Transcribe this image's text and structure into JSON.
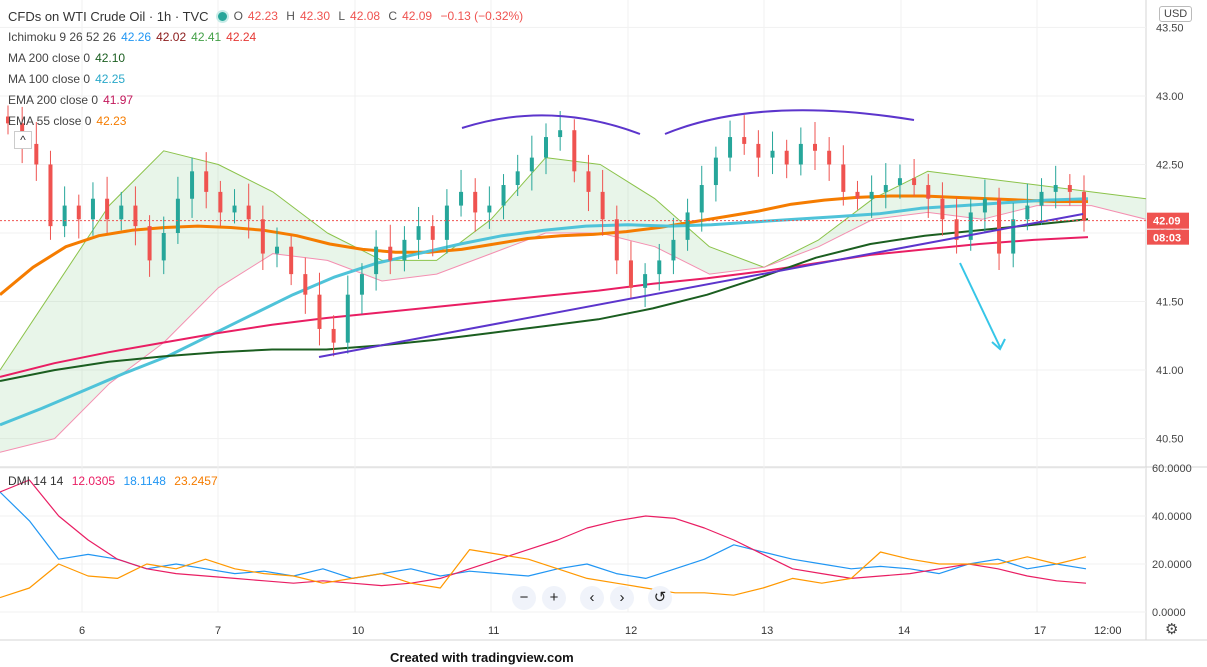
{
  "header": {
    "title": "CFDs on WTI Crude Oil · 1h · TVC",
    "ohlc": {
      "o_label": "O",
      "o": "42.23",
      "h_label": "H",
      "h": "42.30",
      "l_label": "L",
      "l": "42.08",
      "c_label": "C",
      "c": "42.09",
      "change": "−0.13 (−0.32%)"
    },
    "collapse_icon": "^"
  },
  "indicators": {
    "ichimoku": {
      "label": "Ichimoku 9 26 52 26",
      "v1": "42.26",
      "v2": "42.02",
      "v3": "42.41",
      "v4": "42.24"
    },
    "ma200": {
      "label": "MA 200 close 0",
      "value": "42.10"
    },
    "ma100": {
      "label": "MA 100 close 0",
      "value": "42.25"
    },
    "ema200": {
      "label": "EMA 200 close 0",
      "value": "41.97"
    },
    "ema55": {
      "label": "EMA 55 close 0",
      "value": "42.23"
    }
  },
  "dmi": {
    "label": "DMI 14 14",
    "v1": "12.0305",
    "v2": "18.1148",
    "v3": "23.2457"
  },
  "price_axis": {
    "currency": "USD",
    "ticks": [
      "43.50",
      "43.00",
      "42.50",
      "42.00",
      "41.50",
      "41.00",
      "40.50"
    ],
    "last_price": "42.09",
    "countdown": "08:03"
  },
  "dmi_axis": {
    "ticks": [
      "60.0000",
      "40.0000",
      "20.0000",
      "0.0000"
    ]
  },
  "time_axis": {
    "labels": [
      "6",
      "7",
      "10",
      "11",
      "12",
      "13",
      "14",
      "17",
      "12:00"
    ]
  },
  "toolbar": {
    "zoom_out": "−",
    "zoom_in": "+",
    "back": "‹",
    "forward": "›",
    "reset": "↺"
  },
  "footer": {
    "text": "Created with tradingview.com"
  },
  "colors": {
    "up": "#26a69a",
    "down": "#ef5350",
    "ema55": "#f57c00",
    "ma100": "#4fc3d9",
    "ema200": "#e91e63",
    "ma200": "#1b5e20",
    "trendline": "#5c35cc",
    "arrow": "#36c6e8",
    "dmi_plus": "#2196f3",
    "dmi_minus": "#e91e63",
    "adx": "#ff9800"
  },
  "chart_data": {
    "type": "line",
    "symbol": "CFDs on WTI Crude Oil",
    "interval": "1h",
    "x_labels": [
      "6",
      "7",
      "10",
      "11",
      "12",
      "13",
      "14",
      "17",
      "12:00"
    ],
    "ylim": [
      40.3,
      43.7
    ],
    "grid": true,
    "price_series": [
      {
        "name": "Close",
        "values": [
          42.8,
          42.65,
          42.5,
          42.05,
          42.2,
          42.1,
          42.25,
          42.1,
          42.2,
          42.05,
          41.8,
          42.0,
          42.25,
          42.45,
          42.3,
          42.15,
          42.2,
          42.1,
          41.85,
          41.9,
          41.7,
          41.55,
          41.3,
          41.2,
          41.55,
          41.7,
          41.9,
          41.8,
          41.95,
          42.05,
          41.95,
          42.2,
          42.3,
          42.15,
          42.2,
          42.35,
          42.45,
          42.55,
          42.7,
          42.75,
          42.45,
          42.3,
          42.1,
          41.8,
          41.6,
          41.7,
          41.8,
          41.95,
          42.15,
          42.35,
          42.55,
          42.7,
          42.65,
          42.55,
          42.6,
          42.5,
          42.65,
          42.6,
          42.5,
          42.3,
          42.25,
          42.3,
          42.35,
          42.4,
          42.35,
          42.25,
          42.1,
          41.95,
          42.15,
          42.25,
          41.85,
          42.1,
          42.2,
          42.3,
          42.35,
          42.3,
          42.09
        ]
      }
    ],
    "indicator_series": [
      {
        "name": "EMA 55",
        "values": [
          41.55,
          41.75,
          41.9,
          41.98,
          42.02,
          42.04,
          42.05,
          42.04,
          42.02,
          41.98,
          41.92,
          41.88,
          41.86,
          41.86,
          41.88,
          41.92,
          41.96,
          41.98,
          41.99,
          42.01,
          42.04,
          42.08,
          42.12,
          42.16,
          42.21,
          42.24,
          42.26,
          42.27,
          42.27,
          42.26,
          42.25,
          42.24,
          42.23,
          42.23
        ]
      },
      {
        "name": "MA 100",
        "values": [
          40.6,
          40.72,
          40.85,
          40.98,
          41.1,
          41.25,
          41.4,
          41.55,
          41.68,
          41.78,
          41.85,
          41.92,
          41.98,
          42.02,
          42.05,
          42.06,
          42.05,
          42.06,
          42.08,
          42.1,
          42.12,
          42.14,
          42.18,
          42.2,
          42.22,
          42.24,
          42.25
        ]
      },
      {
        "name": "EMA 200",
        "values": [
          40.95,
          41.05,
          41.13,
          41.2,
          41.27,
          41.33,
          41.38,
          41.42,
          41.46,
          41.5,
          41.54,
          41.58,
          41.63,
          41.67,
          41.72,
          41.78,
          41.84,
          41.88,
          41.92,
          41.95,
          41.97
        ]
      },
      {
        "name": "MA 200",
        "values": [
          40.92,
          41.0,
          41.06,
          41.1,
          41.13,
          41.15,
          41.15,
          41.18,
          41.22,
          41.27,
          41.32,
          41.37,
          41.45,
          41.55,
          41.68,
          41.82,
          41.92,
          41.98,
          42.02,
          42.06,
          42.1
        ]
      }
    ],
    "dmi_series": [
      {
        "name": "DI+",
        "values": [
          50,
          38,
          22,
          24,
          22,
          18,
          20,
          18,
          16,
          17,
          15,
          18,
          14,
          16,
          18,
          15,
          17,
          16,
          15,
          18,
          20,
          16,
          14,
          18,
          22,
          28,
          25,
          22,
          20,
          18,
          19,
          18,
          16,
          20,
          22,
          18,
          20,
          18
        ]
      },
      {
        "name": "DI−",
        "values": [
          50,
          55,
          40,
          30,
          22,
          18,
          16,
          15,
          14,
          13,
          12,
          13,
          12,
          11,
          12,
          14,
          18,
          22,
          26,
          30,
          35,
          38,
          40,
          39,
          35,
          30,
          24,
          18,
          16,
          14,
          15,
          16,
          18,
          20,
          18,
          15,
          13,
          12
        ]
      },
      {
        "name": "ADX",
        "values": [
          6,
          10,
          20,
          15,
          14,
          20,
          18,
          22,
          18,
          16,
          15,
          12,
          14,
          16,
          12,
          10,
          26,
          24,
          22,
          18,
          14,
          12,
          10,
          8,
          8,
          7,
          10,
          14,
          12,
          14,
          25,
          22,
          20,
          20,
          20,
          23,
          20,
          23
        ]
      }
    ],
    "dmi_ylim": [
      0,
      60
    ]
  }
}
